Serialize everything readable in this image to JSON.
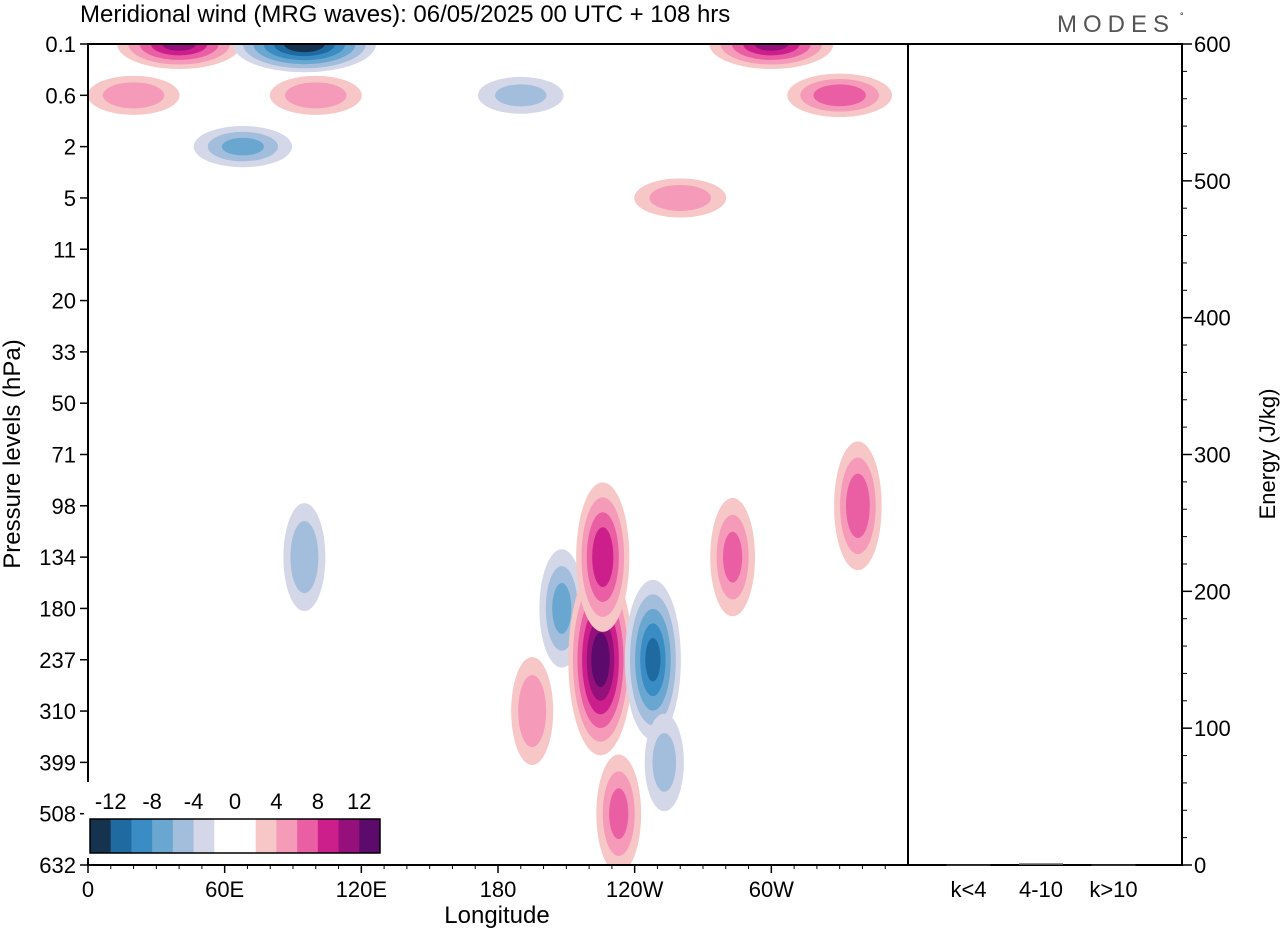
{
  "chart_data": [
    {
      "type": "heatmap",
      "title": "Meridional wind (MRG waves):  06/05/2025  00 UTC  + 108 hrs",
      "xlabel": "Longitude",
      "ylabel": "Pressure levels (hPa)",
      "x_ticks": [
        "0",
        "60E",
        "120E",
        "180",
        "120W",
        "60W"
      ],
      "y_ticks": [
        "0.1",
        "0.6",
        "2",
        "5",
        "11",
        "20",
        "33",
        "50",
        "71",
        "98",
        "134",
        "180",
        "237",
        "310",
        "399",
        "508",
        "632"
      ],
      "colorbar": {
        "labels": [
          "-12",
          "-8",
          "-4",
          "0",
          "4",
          "8",
          "12"
        ],
        "colors": [
          "#15324f",
          "#1f6aa0",
          "#3a8cc4",
          "#6aa7d0",
          "#a3bddc",
          "#d3d7e8",
          "#ffffff",
          "#ffffff",
          "#f7c6c6",
          "#f59ab8",
          "#ea5ea3",
          "#cc1f8c",
          "#95107a",
          "#5c0a6b"
        ]
      },
      "features": [
        {
          "lon": 40,
          "level": "0.1",
          "value": 10
        },
        {
          "lon": 95,
          "level": "0.1",
          "value": -13
        },
        {
          "lon": 20,
          "level": "0.6",
          "value": 5
        },
        {
          "lon": 68,
          "level": "2",
          "value": -6
        },
        {
          "lon": 100,
          "level": "0.6",
          "value": 5
        },
        {
          "lon": 190,
          "level": "0.6",
          "value": -4
        },
        {
          "lon": 300,
          "level": "0.1",
          "value": 10
        },
        {
          "lon": 330,
          "level": "0.6",
          "value": 7
        },
        {
          "lon": 260,
          "level": "5",
          "value": 5
        },
        {
          "lon": 95,
          "level": "134",
          "value": -5
        },
        {
          "lon": 208,
          "level": "180",
          "value": -6
        },
        {
          "lon": 225,
          "level": "237",
          "value": 13
        },
        {
          "lon": 226,
          "level": "134",
          "value": 9
        },
        {
          "lon": 248,
          "level": "237",
          "value": -10
        },
        {
          "lon": 253,
          "level": "399",
          "value": -4
        },
        {
          "lon": 233,
          "level": "508",
          "value": 6
        },
        {
          "lon": 283,
          "level": "134",
          "value": 6
        },
        {
          "lon": 338,
          "level": "98",
          "value": 7
        },
        {
          "lon": 195,
          "level": "310",
          "value": 5
        }
      ]
    },
    {
      "type": "bar",
      "ylabel": "Energy (J/kg)",
      "categories": [
        "k<4",
        "4-10",
        "k>10"
      ],
      "values": [
        0.3,
        1.2,
        0.3
      ],
      "ylim": [
        0,
        600
      ],
      "y_ticks": [
        "0",
        "100",
        "200",
        "300",
        "400",
        "500",
        "600"
      ]
    }
  ],
  "logo_text": "MODES"
}
